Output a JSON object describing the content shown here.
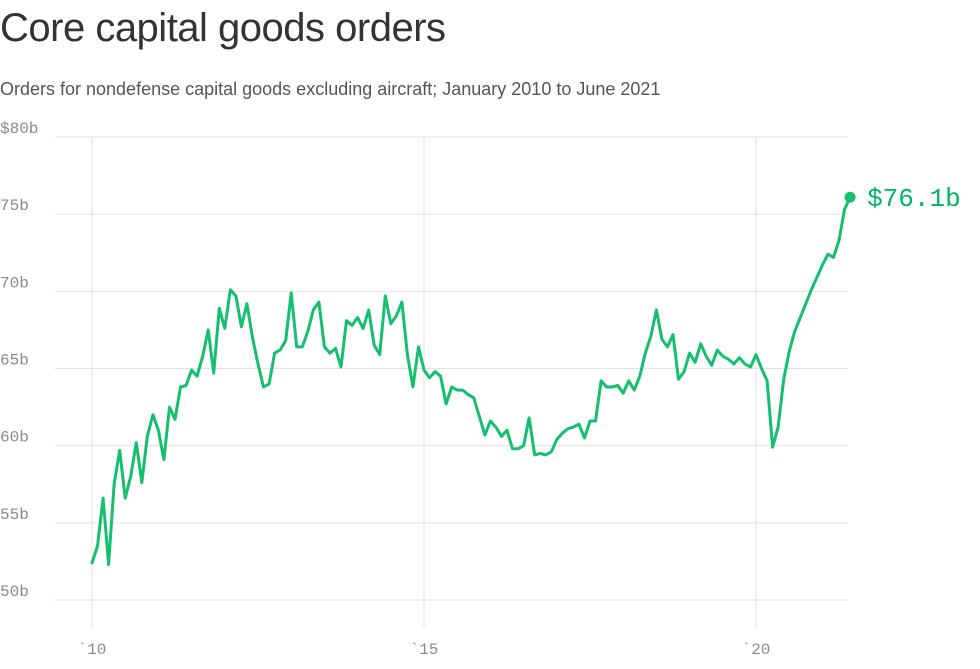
{
  "chart_data": {
    "type": "line",
    "title": "Core capital goods orders",
    "subtitle": "Orders for nondefense capital goods excluding aircraft; January 2010 to June 2021",
    "xlabel": "",
    "ylabel": "",
    "x_start": "2010-01",
    "x_end": "2021-06",
    "xlim": [
      "2010-01",
      "2021-06"
    ],
    "ylim": [
      50,
      80
    ],
    "y_ticks": [
      {
        "value": 80,
        "label": "$80b"
      },
      {
        "value": 75,
        "label": "75b"
      },
      {
        "value": 70,
        "label": "70b"
      },
      {
        "value": 65,
        "label": "65b"
      },
      {
        "value": 60,
        "label": "60b"
      },
      {
        "value": 55,
        "label": "55b"
      },
      {
        "value": 50,
        "label": "50b"
      }
    ],
    "x_ticks": [
      {
        "value": "2010-01",
        "label": "`10"
      },
      {
        "value": "2015-01",
        "label": "`15"
      },
      {
        "value": "2020-01",
        "label": "`20"
      }
    ],
    "grid": true,
    "end_label": "$76.1b",
    "series": [
      {
        "color": "#14c06e",
        "points": [
          [
            "2010-01",
            52.4
          ],
          [
            "2010-02",
            53.5
          ],
          [
            "2010-03",
            56.6
          ],
          [
            "2010-04",
            52.3
          ],
          [
            "2010-05",
            57.5
          ],
          [
            "2010-06",
            59.7
          ],
          [
            "2010-07",
            56.6
          ],
          [
            "2010-08",
            58.0
          ],
          [
            "2010-09",
            60.2
          ],
          [
            "2010-10",
            57.6
          ],
          [
            "2010-11",
            60.6
          ],
          [
            "2010-12",
            62.0
          ],
          [
            "2011-01",
            61.0
          ],
          [
            "2011-02",
            59.1
          ],
          [
            "2011-03",
            62.5
          ],
          [
            "2011-04",
            61.7
          ],
          [
            "2011-05",
            63.8
          ],
          [
            "2011-06",
            63.9
          ],
          [
            "2011-07",
            64.9
          ],
          [
            "2011-08",
            64.5
          ],
          [
            "2011-09",
            65.8
          ],
          [
            "2011-10",
            67.5
          ],
          [
            "2011-11",
            64.7
          ],
          [
            "2011-12",
            68.9
          ],
          [
            "2012-01",
            67.6
          ],
          [
            "2012-02",
            70.1
          ],
          [
            "2012-03",
            69.7
          ],
          [
            "2012-04",
            67.7
          ],
          [
            "2012-05",
            69.2
          ],
          [
            "2012-06",
            67.0
          ],
          [
            "2012-07",
            65.3
          ],
          [
            "2012-08",
            63.8
          ],
          [
            "2012-09",
            64.0
          ],
          [
            "2012-10",
            66.0
          ],
          [
            "2012-11",
            66.2
          ],
          [
            "2012-12",
            66.8
          ],
          [
            "2013-01",
            69.9
          ],
          [
            "2013-02",
            66.4
          ],
          [
            "2013-03",
            66.4
          ],
          [
            "2013-04",
            67.4
          ],
          [
            "2013-05",
            68.8
          ],
          [
            "2013-06",
            69.3
          ],
          [
            "2013-07",
            66.4
          ],
          [
            "2013-08",
            66.0
          ],
          [
            "2013-09",
            66.3
          ],
          [
            "2013-10",
            65.1
          ],
          [
            "2013-11",
            68.1
          ],
          [
            "2013-12",
            67.8
          ],
          [
            "2014-01",
            68.3
          ],
          [
            "2014-02",
            67.6
          ],
          [
            "2014-03",
            68.8
          ],
          [
            "2014-04",
            66.5
          ],
          [
            "2014-05",
            65.9
          ],
          [
            "2014-06",
            69.7
          ],
          [
            "2014-07",
            67.9
          ],
          [
            "2014-08",
            68.4
          ],
          [
            "2014-09",
            69.3
          ],
          [
            "2014-10",
            65.9
          ],
          [
            "2014-11",
            63.8
          ],
          [
            "2014-12",
            66.4
          ],
          [
            "2015-01",
            64.9
          ],
          [
            "2015-02",
            64.4
          ],
          [
            "2015-03",
            64.8
          ],
          [
            "2015-04",
            64.5
          ],
          [
            "2015-05",
            62.7
          ],
          [
            "2015-06",
            63.8
          ],
          [
            "2015-07",
            63.6
          ],
          [
            "2015-08",
            63.6
          ],
          [
            "2015-09",
            63.3
          ],
          [
            "2015-10",
            63.1
          ],
          [
            "2015-11",
            61.9
          ],
          [
            "2015-12",
            60.7
          ],
          [
            "2016-01",
            61.6
          ],
          [
            "2016-02",
            61.2
          ],
          [
            "2016-03",
            60.6
          ],
          [
            "2016-04",
            61.0
          ],
          [
            "2016-05",
            59.8
          ],
          [
            "2016-06",
            59.8
          ],
          [
            "2016-07",
            60.0
          ],
          [
            "2016-08",
            61.8
          ],
          [
            "2016-09",
            59.4
          ],
          [
            "2016-10",
            59.5
          ],
          [
            "2016-11",
            59.4
          ],
          [
            "2016-12",
            59.6
          ],
          [
            "2017-01",
            60.4
          ],
          [
            "2017-02",
            60.8
          ],
          [
            "2017-03",
            61.1
          ],
          [
            "2017-04",
            61.2
          ],
          [
            "2017-05",
            61.4
          ],
          [
            "2017-06",
            60.5
          ],
          [
            "2017-07",
            61.6
          ],
          [
            "2017-08",
            61.6
          ],
          [
            "2017-09",
            64.2
          ],
          [
            "2017-10",
            63.8
          ],
          [
            "2017-11",
            63.8
          ],
          [
            "2017-12",
            63.9
          ],
          [
            "2018-01",
            63.4
          ],
          [
            "2018-02",
            64.2
          ],
          [
            "2018-03",
            63.6
          ],
          [
            "2018-04",
            64.5
          ],
          [
            "2018-05",
            66.0
          ],
          [
            "2018-06",
            67.1
          ],
          [
            "2018-07",
            68.8
          ],
          [
            "2018-08",
            66.9
          ],
          [
            "2018-09",
            66.4
          ],
          [
            "2018-10",
            67.2
          ],
          [
            "2018-11",
            64.3
          ],
          [
            "2018-12",
            64.8
          ],
          [
            "2019-01",
            66.0
          ],
          [
            "2019-02",
            65.4
          ],
          [
            "2019-03",
            66.6
          ],
          [
            "2019-04",
            65.8
          ],
          [
            "2019-05",
            65.2
          ],
          [
            "2019-06",
            66.2
          ],
          [
            "2019-07",
            65.8
          ],
          [
            "2019-08",
            65.6
          ],
          [
            "2019-09",
            65.3
          ],
          [
            "2019-10",
            65.7
          ],
          [
            "2019-11",
            65.3
          ],
          [
            "2019-12",
            65.1
          ],
          [
            "2020-01",
            65.9
          ],
          [
            "2020-02",
            65.0
          ],
          [
            "2020-03",
            64.2
          ],
          [
            "2020-04",
            59.9
          ],
          [
            "2020-05",
            61.2
          ],
          [
            "2020-06",
            64.3
          ],
          [
            "2020-07",
            66.1
          ],
          [
            "2020-08",
            67.4
          ],
          [
            "2020-09",
            68.3
          ],
          [
            "2020-10",
            69.2
          ],
          [
            "2020-11",
            70.1
          ],
          [
            "2020-12",
            70.9
          ],
          [
            "2021-01",
            71.7
          ],
          [
            "2021-02",
            72.4
          ],
          [
            "2021-03",
            72.2
          ],
          [
            "2021-04",
            73.3
          ],
          [
            "2021-05",
            75.3
          ],
          [
            "2021-06",
            76.1
          ]
        ]
      }
    ]
  }
}
